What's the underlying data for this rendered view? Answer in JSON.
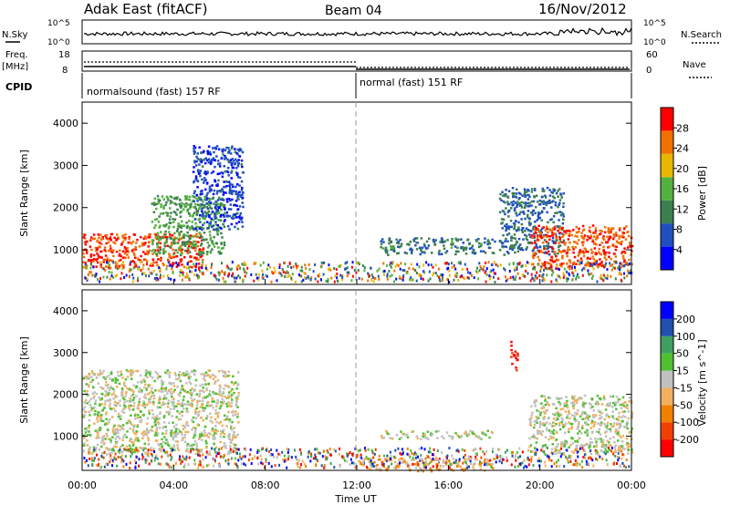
{
  "header": {
    "station": "Adak East (fitACF)",
    "beam": "Beam 04",
    "date": "16/Nov/2012"
  },
  "top_panels": {
    "nsky_label": "N.Sky",
    "nsky_ticks": [
      "10^5",
      "10^0"
    ],
    "nsearch_label": "N.Search",
    "nsearch_ticks": [
      "10^5",
      "10^0"
    ],
    "freq_label": "Freq.",
    "freq_unit": "[MHz]",
    "freq_ticks": [
      "18",
      "8"
    ],
    "nave_label": "Nave",
    "nave_ticks": [
      "60",
      "0"
    ],
    "cpid_label": "CPID",
    "cpid_segments": [
      "normalsound (fast) 157 RF",
      "normal (fast) 151 RF"
    ]
  },
  "chart_data": [
    {
      "type": "heatmap",
      "title": "",
      "ylabel": "Slant Range [km]",
      "xlabel": "",
      "x_ticks": [
        "00:00",
        "04:00",
        "08:00",
        "12:00",
        "16:00",
        "20:00",
        "00:00"
      ],
      "y_ticks": [
        "1000",
        "2000",
        "3000",
        "4000"
      ],
      "ylim": [
        180,
        4500
      ],
      "colorbar": {
        "label": "Power [dB]",
        "ticks": [
          "28",
          "24",
          "20",
          "16",
          "12",
          "8",
          "4"
        ],
        "colors": [
          "#0000ff",
          "#2050c0",
          "#3c8050",
          "#54b040",
          "#e8b800",
          "#f07000",
          "#ff0000"
        ],
        "range": [
          0,
          32
        ]
      },
      "regions": [
        {
          "name": "dusk-near",
          "t_start": 0.0,
          "t_end": 5.3,
          "r_start": 600,
          "r_end": 1400,
          "value": 28
        },
        {
          "name": "dusk-rise",
          "t_start": 3.0,
          "t_end": 6.2,
          "r_start": 900,
          "r_end": 2300,
          "value": 14
        },
        {
          "name": "dusk-edge",
          "t_start": 4.8,
          "t_end": 7.0,
          "r_start": 1500,
          "r_end": 3500,
          "value": 6
        },
        {
          "name": "midday-band",
          "t_start": 13.0,
          "t_end": 18.0,
          "r_start": 900,
          "r_end": 1300,
          "value": 10
        },
        {
          "name": "dawn-rise",
          "t_start": 18.2,
          "t_end": 21.0,
          "r_start": 900,
          "r_end": 2500,
          "value": 9
        },
        {
          "name": "dawn-near",
          "t_start": 19.6,
          "t_end": 24.0,
          "r_start": 600,
          "r_end": 1600,
          "value": 27
        }
      ]
    },
    {
      "type": "heatmap",
      "title": "",
      "ylabel": "Slant Range [km]",
      "xlabel": "Time UT",
      "x_ticks": [
        "00:00",
        "04:00",
        "08:00",
        "12:00",
        "16:00",
        "20:00",
        "00:00"
      ],
      "y_ticks": [
        "1000",
        "2000",
        "3000",
        "4000"
      ],
      "ylim": [
        180,
        4500
      ],
      "colorbar": {
        "label": "Velocity [m s^-1]",
        "ticks": [
          "200",
          "100",
          "50",
          "15",
          "-15",
          "-50",
          "-100",
          "-200"
        ],
        "colors": [
          "#ff0000",
          "#f04000",
          "#f08000",
          "#f0b060",
          "#c0c0c0",
          "#50c030",
          "#40a060",
          "#2050b0",
          "#0000ff"
        ],
        "range": [
          -250,
          250
        ]
      },
      "regions": [
        {
          "name": "dusk-ground",
          "t_start": 0.0,
          "t_end": 6.8,
          "r_start": 600,
          "r_end": 2600,
          "value": 0
        },
        {
          "name": "midday-band",
          "t_start": 13.0,
          "t_end": 18.0,
          "r_start": 950,
          "r_end": 1150,
          "value": 0
        },
        {
          "name": "near-orange",
          "t_start": 12.0,
          "t_end": 18.0,
          "r_start": 180,
          "r_end": 500,
          "value": -60
        },
        {
          "name": "dawn-ground",
          "t_start": 19.5,
          "t_end": 24.0,
          "r_start": 600,
          "r_end": 2000,
          "value": 0
        },
        {
          "name": "red-streak",
          "t_start": 18.7,
          "t_end": 19.0,
          "r_start": 2600,
          "r_end": 3300,
          "value": -220
        }
      ]
    }
  ]
}
